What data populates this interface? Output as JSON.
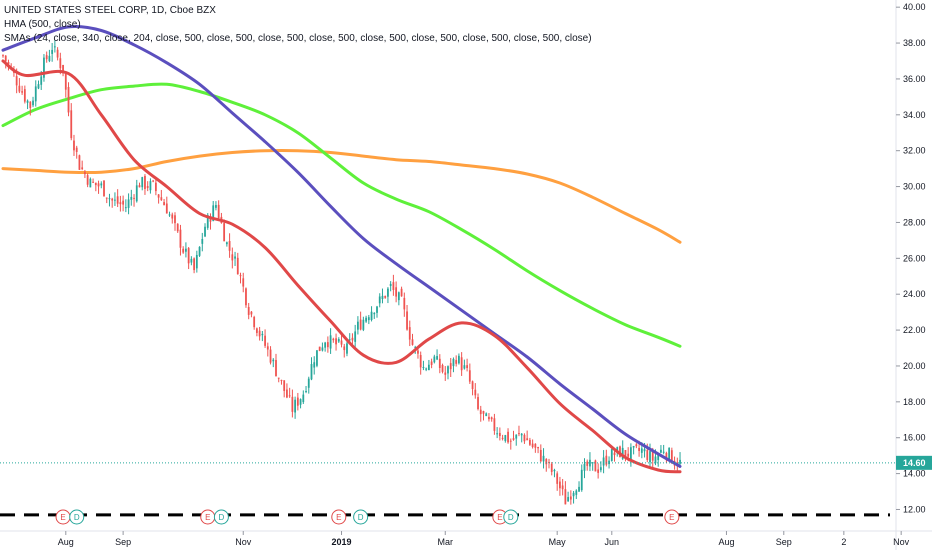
{
  "header": {
    "title": "UNITED STATES STEEL CORP, 1D, Cboe BZX",
    "hma_label": "HMA (500, close)",
    "sma_label": "SMAs (24, close, 340, close, 204, close, 500, close, 500, close, 500, close, 500, close, 500, close, 500, close, 500, close, 500, close)"
  },
  "colors": {
    "background": "#ffffff",
    "up": "#26a69a",
    "down": "#ef5350",
    "hma": "#e04848",
    "sma_purple": "#5b4fbe",
    "sma_green": "#5ef03a",
    "sma_orange": "#ffa040",
    "support": "#000000",
    "price_label": "#26a69a",
    "event_earnings": "#e04848",
    "event_dividend": "#26a69a"
  },
  "chart_data": {
    "type": "candlestick",
    "ylim": [
      10.8,
      40.4
    ],
    "y_ticks": [
      "12.00",
      "14.00",
      "16.00",
      "18.00",
      "20.00",
      "22.00",
      "24.00",
      "26.00",
      "28.00",
      "30.00",
      "32.00",
      "34.00",
      "36.00",
      "38.00",
      "40.00"
    ],
    "x_ticks": [
      {
        "label": "Aug",
        "i": 23,
        "bold": false
      },
      {
        "label": "Sep",
        "i": 44,
        "bold": false
      },
      {
        "label": "Nov",
        "i": 88,
        "bold": false
      },
      {
        "label": "2019",
        "i": 124,
        "bold": true
      },
      {
        "label": "Mar",
        "i": 162,
        "bold": false
      },
      {
        "label": "May",
        "i": 203,
        "bold": false
      },
      {
        "label": "Jun",
        "i": 223,
        "bold": false
      },
      {
        "label": "Aug",
        "i": 265,
        "bold": false
      },
      {
        "label": "Sep",
        "i": 286,
        "bold": false
      },
      {
        "label": "2",
        "i": 308,
        "bold": false
      },
      {
        "label": "Nov",
        "i": 329,
        "bold": false
      }
    ],
    "last_price": 14.6,
    "last_price_label": "14.60",
    "support_level": 11.7,
    "events": [
      {
        "type": "earnings",
        "label": "E",
        "i": 22
      },
      {
        "type": "dividend",
        "label": "D",
        "i": 27
      },
      {
        "type": "earnings",
        "label": "E",
        "i": 75
      },
      {
        "type": "dividend",
        "label": "D",
        "i": 80
      },
      {
        "type": "earnings",
        "label": "E",
        "i": 123
      },
      {
        "type": "dividend",
        "label": "D",
        "i": 131
      },
      {
        "type": "earnings",
        "label": "E",
        "i": 182
      },
      {
        "type": "dividend",
        "label": "D",
        "i": 186
      },
      {
        "type": "earnings",
        "label": "E",
        "i": 245
      }
    ],
    "series": [
      {
        "name": "HMA (500, close)",
        "color": "#e04848",
        "points": [
          [
            0,
            37.0
          ],
          [
            8,
            36.2
          ],
          [
            24,
            36.3
          ],
          [
            36,
            34.0
          ],
          [
            48,
            31.5
          ],
          [
            60,
            30.0
          ],
          [
            72,
            28.5
          ],
          [
            84,
            27.9
          ],
          [
            96,
            26.6
          ],
          [
            108,
            24.5
          ],
          [
            120,
            22.5
          ],
          [
            132,
            20.6
          ],
          [
            144,
            20.2
          ],
          [
            156,
            21.5
          ],
          [
            168,
            22.4
          ],
          [
            180,
            21.7
          ],
          [
            192,
            19.9
          ],
          [
            204,
            17.9
          ],
          [
            216,
            16.4
          ],
          [
            228,
            14.9
          ],
          [
            240,
            14.2
          ],
          [
            248,
            14.1
          ]
        ]
      },
      {
        "name": "SMA purple",
        "color": "#5b4fbe",
        "points": [
          [
            0,
            37.6
          ],
          [
            12,
            38.3
          ],
          [
            24,
            38.9
          ],
          [
            36,
            38.7
          ],
          [
            48,
            37.9
          ],
          [
            60,
            36.9
          ],
          [
            72,
            35.7
          ],
          [
            84,
            34.1
          ],
          [
            96,
            32.5
          ],
          [
            108,
            30.8
          ],
          [
            120,
            28.9
          ],
          [
            132,
            27.1
          ],
          [
            144,
            25.7
          ],
          [
            156,
            24.4
          ],
          [
            168,
            23.1
          ],
          [
            180,
            21.8
          ],
          [
            192,
            20.5
          ],
          [
            204,
            19.0
          ],
          [
            216,
            17.6
          ],
          [
            228,
            16.2
          ],
          [
            240,
            15.1
          ],
          [
            248,
            14.4
          ]
        ]
      },
      {
        "name": "SMA green",
        "color": "#5ef03a",
        "points": [
          [
            0,
            33.4
          ],
          [
            12,
            34.3
          ],
          [
            24,
            34.9
          ],
          [
            36,
            35.4
          ],
          [
            48,
            35.6
          ],
          [
            60,
            35.7
          ],
          [
            72,
            35.3
          ],
          [
            84,
            34.7
          ],
          [
            96,
            34.0
          ],
          [
            108,
            33.0
          ],
          [
            120,
            31.6
          ],
          [
            132,
            30.2
          ],
          [
            144,
            29.3
          ],
          [
            156,
            28.6
          ],
          [
            168,
            27.6
          ],
          [
            180,
            26.5
          ],
          [
            192,
            25.3
          ],
          [
            204,
            24.2
          ],
          [
            216,
            23.2
          ],
          [
            228,
            22.3
          ],
          [
            240,
            21.6
          ],
          [
            248,
            21.1
          ]
        ]
      },
      {
        "name": "SMA orange",
        "color": "#ffa040",
        "points": [
          [
            0,
            31.0
          ],
          [
            12,
            30.9
          ],
          [
            24,
            30.8
          ],
          [
            36,
            30.8
          ],
          [
            48,
            31.0
          ],
          [
            60,
            31.4
          ],
          [
            72,
            31.7
          ],
          [
            84,
            31.9
          ],
          [
            96,
            32.0
          ],
          [
            108,
            32.0
          ],
          [
            120,
            31.9
          ],
          [
            132,
            31.7
          ],
          [
            144,
            31.5
          ],
          [
            156,
            31.4
          ],
          [
            168,
            31.2
          ],
          [
            180,
            31.0
          ],
          [
            192,
            30.7
          ],
          [
            204,
            30.2
          ],
          [
            216,
            29.4
          ],
          [
            228,
            28.5
          ],
          [
            240,
            27.6
          ],
          [
            248,
            26.9
          ]
        ]
      }
    ],
    "candles_anchors": [
      [
        0,
        37.3
      ],
      [
        4,
        36.2
      ],
      [
        8,
        35.0
      ],
      [
        10,
        34.5
      ],
      [
        14,
        36.5
      ],
      [
        18,
        37.8
      ],
      [
        22,
        36.5
      ],
      [
        25,
        33.0
      ],
      [
        28,
        31.2
      ],
      [
        32,
        30.2
      ],
      [
        36,
        30.0
      ],
      [
        40,
        29.2
      ],
      [
        45,
        28.9
      ],
      [
        50,
        30.2
      ],
      [
        55,
        30.0
      ],
      [
        60,
        28.8
      ],
      [
        66,
        26.5
      ],
      [
        70,
        25.3
      ],
      [
        74,
        27.8
      ],
      [
        78,
        29.0
      ],
      [
        82,
        26.8
      ],
      [
        86,
        25.5
      ],
      [
        90,
        23.2
      ],
      [
        94,
        21.8
      ],
      [
        98,
        20.5
      ],
      [
        102,
        19.0
      ],
      [
        106,
        17.6
      ],
      [
        110,
        18.5
      ],
      [
        114,
        20.5
      ],
      [
        118,
        21.5
      ],
      [
        122,
        21.2
      ],
      [
        126,
        20.9
      ],
      [
        130,
        22.2
      ],
      [
        134,
        23.0
      ],
      [
        138,
        23.6
      ],
      [
        142,
        24.4
      ],
      [
        146,
        23.5
      ],
      [
        150,
        21.2
      ],
      [
        154,
        19.9
      ],
      [
        158,
        20.4
      ],
      [
        162,
        19.5
      ],
      [
        166,
        20.5
      ],
      [
        170,
        19.6
      ],
      [
        174,
        17.5
      ],
      [
        178,
        16.8
      ],
      [
        182,
        16.3
      ],
      [
        186,
        15.8
      ],
      [
        190,
        16.2
      ],
      [
        194,
        15.5
      ],
      [
        198,
        14.8
      ],
      [
        202,
        13.9
      ],
      [
        206,
        12.5
      ],
      [
        210,
        13.4
      ],
      [
        214,
        14.4
      ],
      [
        218,
        14.3
      ],
      [
        222,
        15.0
      ],
      [
        226,
        15.2
      ],
      [
        230,
        15.1
      ],
      [
        234,
        15.3
      ],
      [
        238,
        14.8
      ],
      [
        242,
        15.4
      ],
      [
        246,
        14.7
      ],
      [
        248,
        14.6
      ]
    ]
  }
}
